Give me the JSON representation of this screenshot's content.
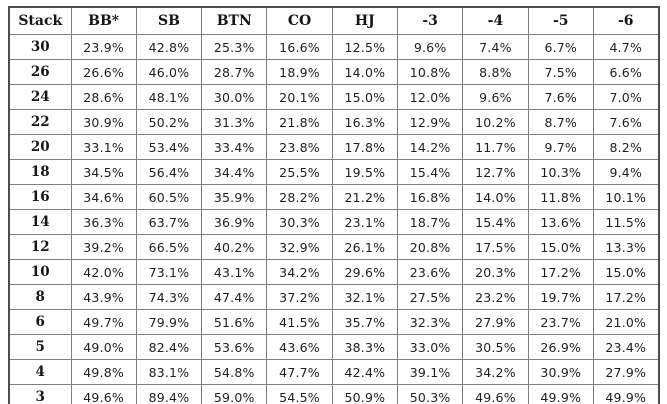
{
  "page": {
    "background_color": "#ffffff",
    "border_outer_color": "#4c4c4c",
    "border_inner_color": "#7f7f7f",
    "text_color": "#1f1f1f"
  },
  "chart_data": {
    "type": "table",
    "columns": [
      "Stack",
      "BB*",
      "SB",
      "BTN",
      "CO",
      "HJ",
      "-3",
      "-4",
      "-5",
      "-6"
    ],
    "rows": [
      {
        "stack": "30",
        "values": [
          "23.9%",
          "42.8%",
          "25.3%",
          "16.6%",
          "12.5%",
          "9.6%",
          "7.4%",
          "6.7%",
          "4.7%"
        ]
      },
      {
        "stack": "26",
        "values": [
          "26.6%",
          "46.0%",
          "28.7%",
          "18.9%",
          "14.0%",
          "10.8%",
          "8.8%",
          "7.5%",
          "6.6%"
        ]
      },
      {
        "stack": "24",
        "values": [
          "28.6%",
          "48.1%",
          "30.0%",
          "20.1%",
          "15.0%",
          "12.0%",
          "9.6%",
          "7.6%",
          "7.0%"
        ]
      },
      {
        "stack": "22",
        "values": [
          "30.9%",
          "50.2%",
          "31.3%",
          "21.8%",
          "16.3%",
          "12.9%",
          "10.2%",
          "8.7%",
          "7.6%"
        ]
      },
      {
        "stack": "20",
        "values": [
          "33.1%",
          "53.4%",
          "33.4%",
          "23.8%",
          "17.8%",
          "14.2%",
          "11.7%",
          "9.7%",
          "8.2%"
        ]
      },
      {
        "stack": "18",
        "values": [
          "34.5%",
          "56.4%",
          "34.4%",
          "25.5%",
          "19.5%",
          "15.4%",
          "12.7%",
          "10.3%",
          "9.4%"
        ]
      },
      {
        "stack": "16",
        "values": [
          "34.6%",
          "60.5%",
          "35.9%",
          "28.2%",
          "21.2%",
          "16.8%",
          "14.0%",
          "11.8%",
          "10.1%"
        ]
      },
      {
        "stack": "14",
        "values": [
          "36.3%",
          "63.7%",
          "36.9%",
          "30.3%",
          "23.1%",
          "18.7%",
          "15.4%",
          "13.6%",
          "11.5%"
        ]
      },
      {
        "stack": "12",
        "values": [
          "39.2%",
          "66.5%",
          "40.2%",
          "32.9%",
          "26.1%",
          "20.8%",
          "17.5%",
          "15.0%",
          "13.3%"
        ]
      },
      {
        "stack": "10",
        "values": [
          "42.0%",
          "73.1%",
          "43.1%",
          "34.2%",
          "29.6%",
          "23.6%",
          "20.3%",
          "17.2%",
          "15.0%"
        ]
      },
      {
        "stack": "8",
        "values": [
          "43.9%",
          "74.3%",
          "47.4%",
          "37.2%",
          "32.1%",
          "27.5%",
          "23.2%",
          "19.7%",
          "17.2%"
        ]
      },
      {
        "stack": "6",
        "values": [
          "49.7%",
          "79.9%",
          "51.6%",
          "41.5%",
          "35.7%",
          "32.3%",
          "27.9%",
          "23.7%",
          "21.0%"
        ]
      },
      {
        "stack": "5",
        "values": [
          "49.0%",
          "82.4%",
          "53.6%",
          "43.6%",
          "38.3%",
          "33.0%",
          "30.5%",
          "26.9%",
          "23.4%"
        ]
      },
      {
        "stack": "4",
        "values": [
          "49.8%",
          "83.1%",
          "54.8%",
          "47.7%",
          "42.4%",
          "39.1%",
          "34.2%",
          "30.9%",
          "27.9%"
        ]
      },
      {
        "stack": "3",
        "values": [
          "49.6%",
          "89.4%",
          "59.0%",
          "54.5%",
          "50.9%",
          "50.3%",
          "49.6%",
          "49.9%",
          "49.9%"
        ]
      }
    ]
  }
}
